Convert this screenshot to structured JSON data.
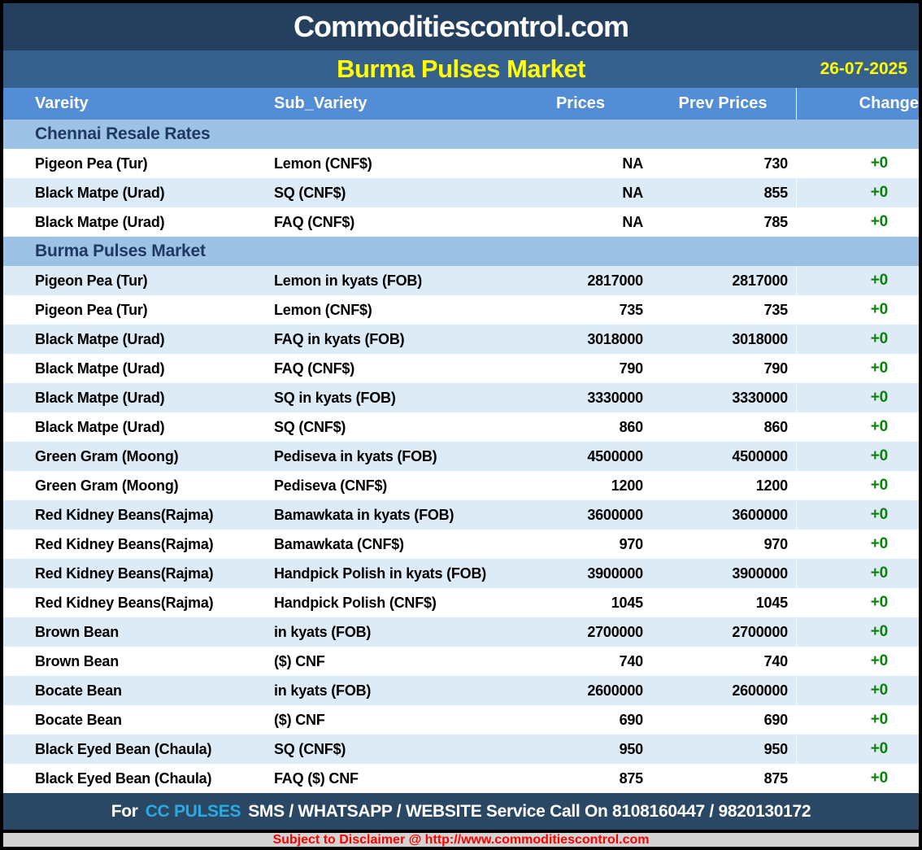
{
  "header": {
    "site_title": "Commoditiescontrol.com",
    "report_title": "Burma Pulses Market",
    "date": "26-07-2025"
  },
  "columns": [
    "Vareity",
    "Sub_Variety",
    "Prices",
    "Prev Prices",
    "Change"
  ],
  "sections": [
    {
      "title": "Chennai Resale Rates",
      "rows": [
        {
          "variety": "Pigeon Pea (Tur)",
          "sub_variety": "Lemon (CNF$)",
          "price": "NA",
          "prev_price": "730",
          "change": "+0"
        },
        {
          "variety": "Black Matpe (Urad)",
          "sub_variety": "SQ (CNF$)",
          "price": "NA",
          "prev_price": "855",
          "change": "+0"
        },
        {
          "variety": "Black Matpe (Urad)",
          "sub_variety": "FAQ (CNF$)",
          "price": "NA",
          "prev_price": "785",
          "change": "+0"
        }
      ]
    },
    {
      "title": "Burma Pulses Market",
      "rows": [
        {
          "variety": "Pigeon Pea (Tur)",
          "sub_variety": "Lemon in kyats (FOB)",
          "price": "2817000",
          "prev_price": "2817000",
          "change": "+0"
        },
        {
          "variety": "Pigeon Pea (Tur)",
          "sub_variety": "Lemon (CNF$)",
          "price": "735",
          "prev_price": "735",
          "change": "+0"
        },
        {
          "variety": "Black Matpe (Urad)",
          "sub_variety": "FAQ in kyats (FOB)",
          "price": "3018000",
          "prev_price": "3018000",
          "change": "+0"
        },
        {
          "variety": "Black Matpe (Urad)",
          "sub_variety": "FAQ (CNF$)",
          "price": "790",
          "prev_price": "790",
          "change": "+0"
        },
        {
          "variety": "Black Matpe (Urad)",
          "sub_variety": "SQ in kyats (FOB)",
          "price": "3330000",
          "prev_price": "3330000",
          "change": "+0"
        },
        {
          "variety": "Black Matpe (Urad)",
          "sub_variety": "SQ (CNF$)",
          "price": "860",
          "prev_price": "860",
          "change": "+0"
        },
        {
          "variety": "Green Gram (Moong)",
          "sub_variety": "Pediseva in kyats (FOB)",
          "price": "4500000",
          "prev_price": "4500000",
          "change": "+0"
        },
        {
          "variety": "Green Gram (Moong)",
          "sub_variety": "Pediseva (CNF$)",
          "price": "1200",
          "prev_price": "1200",
          "change": "+0"
        },
        {
          "variety": "Red Kidney Beans(Rajma)",
          "sub_variety": "Bamawkata in kyats (FOB)",
          "price": "3600000",
          "prev_price": "3600000",
          "change": "+0"
        },
        {
          "variety": "Red Kidney Beans(Rajma)",
          "sub_variety": "Bamawkata (CNF$)",
          "price": "970",
          "prev_price": "970",
          "change": "+0"
        },
        {
          "variety": "Red Kidney Beans(Rajma)",
          "sub_variety": "Handpick Polish in kyats (FOB)",
          "price": "3900000",
          "prev_price": "3900000",
          "change": "+0"
        },
        {
          "variety": "Red Kidney Beans(Rajma)",
          "sub_variety": "Handpick Polish (CNF$)",
          "price": "1045",
          "prev_price": "1045",
          "change": "+0"
        },
        {
          "variety": "Brown Bean",
          "sub_variety": "in kyats (FOB)",
          "price": "2700000",
          "prev_price": "2700000",
          "change": "+0"
        },
        {
          "variety": "Brown Bean",
          "sub_variety": "($) CNF",
          "price": "740",
          "prev_price": "740",
          "change": "+0"
        },
        {
          "variety": "Bocate Bean",
          "sub_variety": "in kyats (FOB)",
          "price": "2600000",
          "prev_price": "2600000",
          "change": "+0"
        },
        {
          "variety": "Bocate Bean",
          "sub_variety": "($) CNF",
          "price": "690",
          "prev_price": "690",
          "change": "+0"
        },
        {
          "variety": "Black Eyed Bean (Chaula)",
          "sub_variety": "SQ (CNF$)",
          "price": "950",
          "prev_price": "950",
          "change": "+0"
        },
        {
          "variety": "Black Eyed Bean (Chaula)",
          "sub_variety": "FAQ ($) CNF",
          "price": "875",
          "prev_price": "875",
          "change": "+0"
        }
      ]
    }
  ],
  "footer": {
    "prefix": "For",
    "brand": "CC PULSES",
    "rest": "SMS / WHATSAPP / WEBSITE Service Call On 8108160447 / 9820130172",
    "disclaimer": "Subject to Disclaimer @  http://www.commoditiescontrol.com"
  },
  "colors": {
    "title_bar_bg": "#24405E",
    "report_bar_bg": "#36618F",
    "column_header_bg": "#538DD5",
    "section_header_bg": "#9CC2E5",
    "section_header_text": "#1F3864",
    "stripe_row_bg": "#DDEBF7",
    "change_positive": "#0B800B",
    "accent_yellow": "#FFFF00",
    "brand_cyan": "#29ABE2",
    "disclaimer_red": "#FF0000",
    "disclaimer_bg": "#D3D3D3"
  }
}
